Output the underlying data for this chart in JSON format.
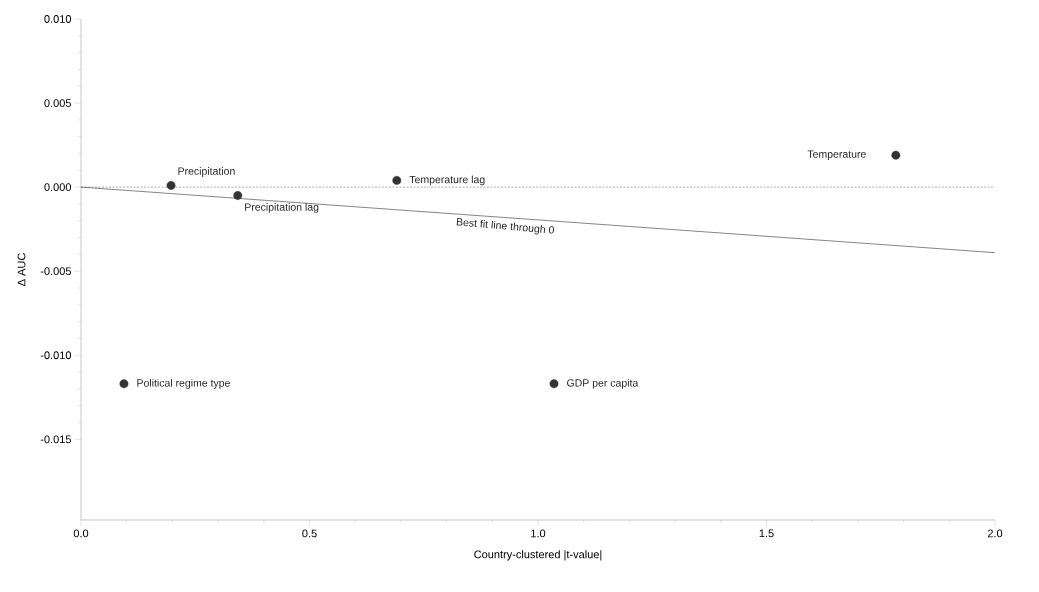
{
  "chart_data": {
    "type": "scatter",
    "xlabel": "Country-clustered |t-value|",
    "ylabel": "Δ AUC",
    "xlim": [
      0,
      2.0
    ],
    "ylim": [
      -0.0198,
      0.01
    ],
    "xticks": [
      {
        "value": 0,
        "label": "0.0"
      },
      {
        "value": 0.5,
        "label": "0.5"
      },
      {
        "value": 1.0,
        "label": "1.0"
      },
      {
        "value": 1.5,
        "label": "1.5"
      },
      {
        "value": 2.0,
        "label": "2.0"
      }
    ],
    "yticks": [
      {
        "value": -0.015,
        "label": "-0.015"
      },
      {
        "value": -0.01,
        "label": "-0.010"
      },
      {
        "value": -0.005,
        "label": "-0.005"
      },
      {
        "value": 0,
        "label": "0.000"
      },
      {
        "value": 0.005,
        "label": "0.005"
      },
      {
        "value": 0.01,
        "label": "0.010"
      }
    ],
    "series": [
      {
        "marker": "circle",
        "color": "#333333",
        "x": [
          0.094,
          0.197,
          0.343,
          0.691,
          1.035,
          1.783
        ],
        "values": [
          -0.0117,
          0.0001,
          -0.0005,
          0.0004,
          -0.0117,
          0.0019
        ]
      },
      {
        "type": "line",
        "marker": "none",
        "color": "#333333",
        "line_style": "solid",
        "x": [
          0,
          2.0
        ],
        "values": [
          0,
          -0.0039
        ]
      }
    ],
    "ref_lines": [
      {
        "axis": "y",
        "value": 0,
        "color": "#555555",
        "line_style": "dashed"
      }
    ],
    "annotations": [
      {
        "text": "Political regime type",
        "x": 0.094,
        "y": -0.0117
      },
      {
        "text": "Precipitation",
        "x": 0.197,
        "y": 0.0001
      },
      {
        "text": "Precipitation lag",
        "x": 0.343,
        "y": -0.0005
      },
      {
        "text": "Temperature lag",
        "x": 0.691,
        "y": 0.0004
      },
      {
        "text": "GDP per capita",
        "x": 1.035,
        "y": -0.0117
      },
      {
        "text": "Temperature",
        "x": 1.783,
        "y": 0.0019
      },
      {
        "text": "Best fit line through 0",
        "x": 0.93,
        "y": -0.0018
      }
    ]
  }
}
